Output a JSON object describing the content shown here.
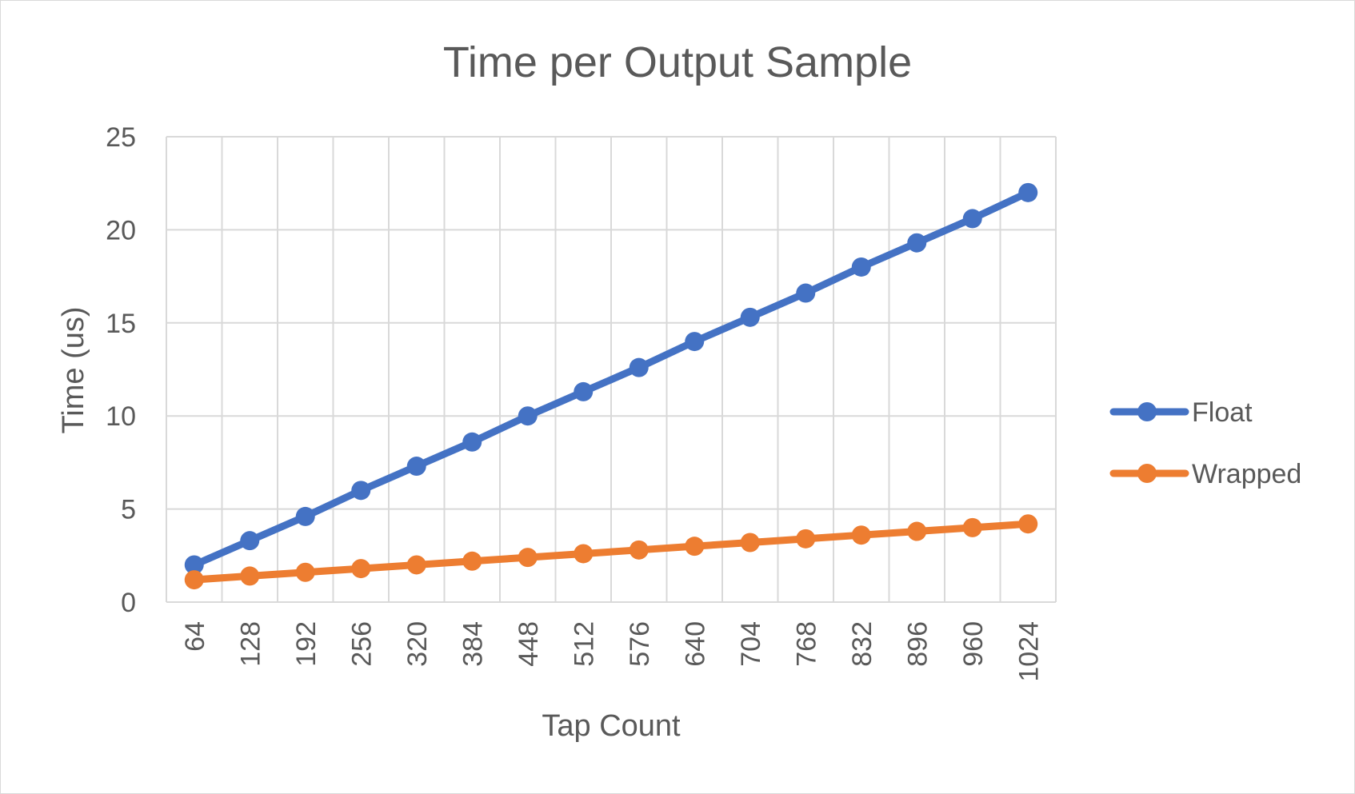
{
  "chart_data": {
    "type": "line",
    "title": "Time per Output Sample",
    "xlabel": "Tap Count",
    "ylabel": "Time (us)",
    "categories": [
      "64",
      "128",
      "192",
      "256",
      "320",
      "384",
      "448",
      "512",
      "576",
      "640",
      "704",
      "768",
      "832",
      "896",
      "960",
      "1024"
    ],
    "ylim": [
      0,
      25
    ],
    "yticks": [
      "0",
      "5",
      "10",
      "15",
      "20",
      "25"
    ],
    "grid": true,
    "legend_position": "right",
    "series": [
      {
        "name": "Float",
        "color": "#4472C4",
        "values": [
          2.0,
          3.3,
          4.6,
          6.0,
          7.3,
          8.6,
          10.0,
          11.3,
          12.6,
          14.0,
          15.3,
          16.6,
          18.0,
          19.3,
          20.6,
          22.0
        ]
      },
      {
        "name": "Wrapped",
        "color": "#ED7D31",
        "values": [
          1.2,
          1.4,
          1.6,
          1.8,
          2.0,
          2.2,
          2.4,
          2.6,
          2.8,
          3.0,
          3.2,
          3.4,
          3.6,
          3.8,
          4.0,
          4.2
        ]
      }
    ]
  }
}
